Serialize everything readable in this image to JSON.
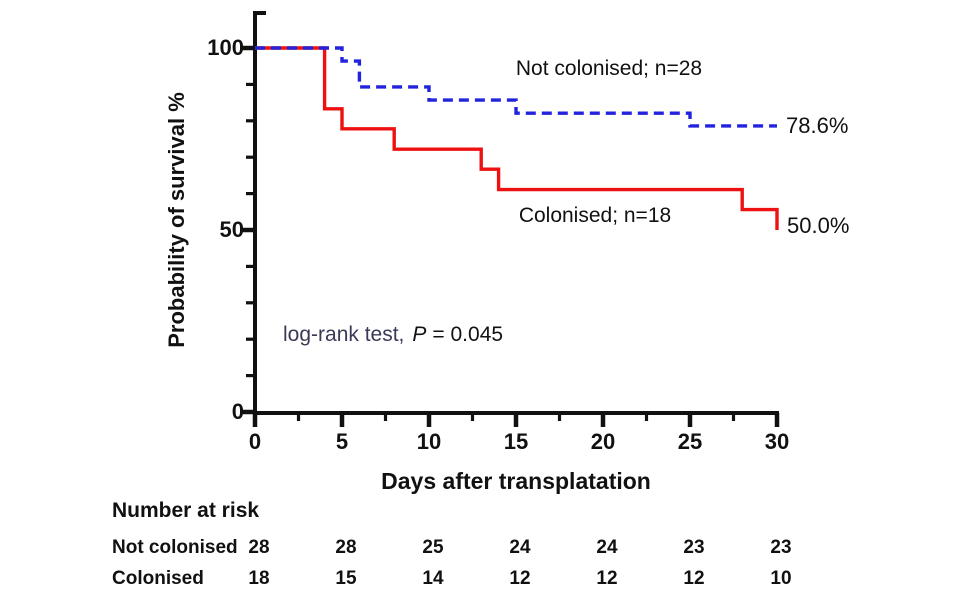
{
  "chart_data": {
    "type": "line",
    "subtype": "kaplan_meier_survival_step",
    "title": "",
    "xlabel": "Days after transplatation",
    "ylabel": "Probability of survival %",
    "xlim": [
      0,
      30
    ],
    "ylim": [
      0,
      100
    ],
    "x_ticks": [
      "0",
      "5",
      "10",
      "15",
      "20",
      "25",
      "30"
    ],
    "x_minor_ticks": [
      2.5,
      7.5,
      12.5,
      17.5,
      22.5,
      27.5
    ],
    "y_ticks": [
      "0",
      "50",
      "100"
    ],
    "y_minor_ticks": [
      10,
      20,
      30,
      40,
      60,
      70,
      80,
      90
    ],
    "grid": false,
    "legend_position": "on-chart",
    "series": [
      {
        "name": "Not colonised; n=28",
        "color": "#2323de",
        "line_style": "dashed",
        "steps": [
          [
            0,
            100
          ],
          [
            5,
            96.4
          ],
          [
            6,
            89.3
          ],
          [
            10,
            85.7
          ],
          [
            15,
            82.1
          ],
          [
            25,
            78.6
          ],
          [
            30,
            78.6
          ]
        ],
        "end_label": "78.6%"
      },
      {
        "name": "Colonised; n=18",
        "color": "#ee1111",
        "line_style": "solid",
        "steps": [
          [
            0,
            100
          ],
          [
            4,
            83.3
          ],
          [
            5,
            77.8
          ],
          [
            8,
            72.2
          ],
          [
            13,
            66.7
          ],
          [
            14,
            61.1
          ],
          [
            28,
            55.6
          ],
          [
            30,
            50.0
          ]
        ],
        "end_label": "50.0%"
      }
    ],
    "annotation": {
      "test_label": "log-rank test,",
      "p_symbol": "P",
      "p_value": "= 0.045",
      "test_label_color": "#3a3a55"
    },
    "risk_table": {
      "title": "Number at risk",
      "rows": [
        {
          "label": "Not colonised",
          "values": [
            "28",
            "28",
            "25",
            "24",
            "24",
            "23",
            "23"
          ]
        },
        {
          "label": "Colonised",
          "values": [
            "18",
            "15",
            "14",
            "12",
            "12",
            "12",
            "10"
          ]
        }
      ]
    }
  }
}
